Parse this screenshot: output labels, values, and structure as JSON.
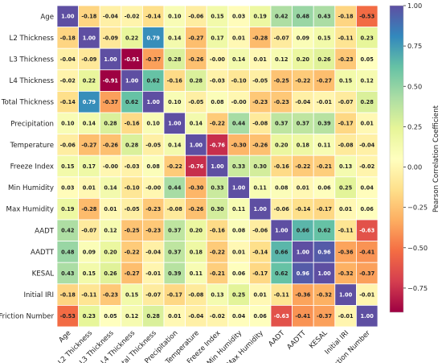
{
  "chart_data": {
    "type": "heatmap",
    "variables": [
      "Age",
      "L2 Thickness",
      "L3 Thickness",
      "L4 Thickness",
      "Total Thickness",
      "Precipitation",
      "Temperature",
      "Freeze Index",
      "Min Humidity",
      "Max Humidity",
      "AADT",
      "AADTT",
      "KESAL",
      "Initial IRI",
      "Friction Number"
    ],
    "values": [
      [
        "1.00",
        "-0.18",
        "-0.04",
        "-0.02",
        "-0.14",
        "0.10",
        "-0.06",
        "0.15",
        "0.03",
        "0.19",
        "0.42",
        "0.48",
        "0.43",
        "-0.18",
        "-0.53"
      ],
      [
        "-0.18",
        "1.00",
        "-0.09",
        "0.22",
        "0.79",
        "0.14",
        "-0.27",
        "0.17",
        "0.01",
        "-0.28",
        "-0.07",
        "0.09",
        "0.15",
        "-0.11",
        "0.23"
      ],
      [
        "-0.04",
        "-0.09",
        "1.00",
        "-0.91",
        "-0.37",
        "0.28",
        "-0.26",
        "-0.00",
        "0.14",
        "0.01",
        "0.12",
        "0.20",
        "0.26",
        "-0.23",
        "0.05"
      ],
      [
        "-0.02",
        "0.22",
        "-0.91",
        "1.00",
        "0.62",
        "-0.16",
        "0.28",
        "-0.03",
        "-0.10",
        "-0.05",
        "-0.25",
        "-0.22",
        "-0.27",
        "0.15",
        "0.12"
      ],
      [
        "-0.14",
        "0.79",
        "-0.37",
        "0.62",
        "1.00",
        "0.10",
        "-0.05",
        "0.08",
        "-0.00",
        "-0.23",
        "-0.23",
        "-0.04",
        "-0.01",
        "-0.07",
        "0.28"
      ],
      [
        "0.10",
        "0.14",
        "0.28",
        "-0.16",
        "0.10",
        "1.00",
        "0.14",
        "-0.22",
        "0.44",
        "-0.08",
        "0.37",
        "0.37",
        "0.39",
        "-0.17",
        "0.01"
      ],
      [
        "-0.06",
        "-0.27",
        "-0.26",
        "0.28",
        "-0.05",
        "0.14",
        "1.00",
        "-0.76",
        "-0.30",
        "-0.26",
        "0.20",
        "0.18",
        "0.11",
        "-0.08",
        "-0.04"
      ],
      [
        "0.15",
        "0.17",
        "-0.00",
        "-0.03",
        "0.08",
        "-0.22",
        "-0.76",
        "1.00",
        "0.33",
        "0.30",
        "-0.16",
        "-0.22",
        "-0.21",
        "0.13",
        "-0.02"
      ],
      [
        "0.03",
        "0.01",
        "0.14",
        "-0.10",
        "-0.00",
        "0.44",
        "-0.30",
        "0.33",
        "1.00",
        "0.11",
        "0.08",
        "0.01",
        "0.06",
        "0.25",
        "0.04"
      ],
      [
        "0.19",
        "-0.28",
        "0.01",
        "-0.05",
        "-0.23",
        "-0.08",
        "-0.26",
        "0.30",
        "0.11",
        "1.00",
        "-0.06",
        "-0.14",
        "-0.17",
        "0.01",
        "0.06"
      ],
      [
        "0.42",
        "-0.07",
        "0.12",
        "-0.25",
        "-0.23",
        "0.37",
        "0.20",
        "-0.16",
        "0.08",
        "-0.06",
        "1.00",
        "0.66",
        "0.62",
        "-0.11",
        "-0.63"
      ],
      [
        "0.48",
        "0.09",
        "0.20",
        "-0.22",
        "-0.04",
        "0.37",
        "0.18",
        "-0.22",
        "0.01",
        "-0.14",
        "0.66",
        "1.00",
        "0.96",
        "-0.36",
        "-0.41"
      ],
      [
        "0.43",
        "0.15",
        "0.26",
        "-0.27",
        "-0.01",
        "0.39",
        "0.11",
        "-0.21",
        "0.06",
        "-0.17",
        "0.62",
        "0.96",
        "1.00",
        "-0.32",
        "-0.37"
      ],
      [
        "-0.18",
        "-0.11",
        "-0.23",
        "0.15",
        "-0.07",
        "-0.17",
        "-0.08",
        "0.13",
        "0.25",
        "0.01",
        "-0.11",
        "-0.36",
        "-0.32",
        "1.00",
        "-0.01"
      ],
      [
        "-0.53",
        "0.23",
        "0.05",
        "0.12",
        "0.28",
        "0.01",
        "-0.04",
        "-0.02",
        "0.04",
        "0.06",
        "-0.63",
        "-0.41",
        "-0.37",
        "-0.01",
        "1.00"
      ]
    ],
    "colorbar": {
      "label": "Pearson Correlation Coefficient",
      "range": [
        -0.9,
        1.0
      ],
      "ticks": [
        "1.00",
        "0.75",
        "0.50",
        "0.25",
        "0.00",
        "−0.25",
        "−0.50",
        "−0.75"
      ],
      "colormap": "Spectral",
      "colors": [
        "#9e0142",
        "#d53e4f",
        "#f46d43",
        "#fdae61",
        "#fee08b",
        "#ffffbf",
        "#e6f598",
        "#abdda4",
        "#66c2a5",
        "#3288bd",
        "#5e4fa2"
      ]
    }
  }
}
